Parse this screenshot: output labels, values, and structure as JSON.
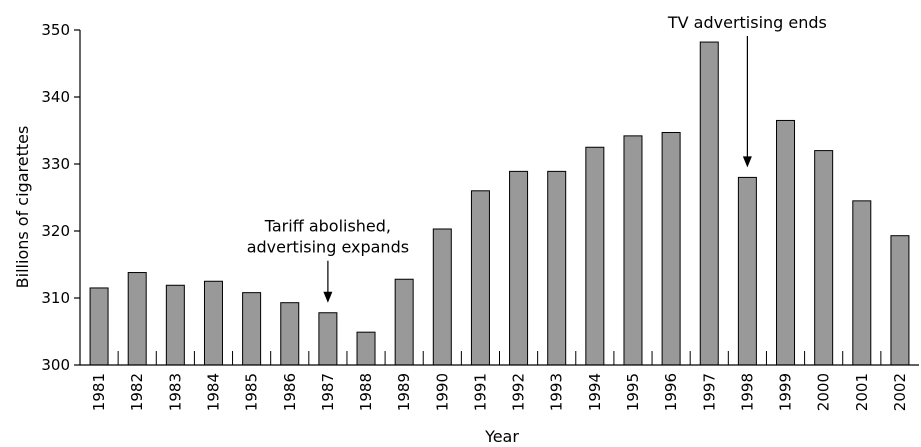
{
  "chart_data": {
    "type": "bar",
    "title": "",
    "xlabel": "Year",
    "ylabel": "Billions of cigarettes",
    "ylim": [
      300,
      350
    ],
    "yticks": [
      300,
      310,
      320,
      330,
      340,
      350
    ],
    "grid": false,
    "categories": [
      "1981",
      "1982",
      "1983",
      "1984",
      "1985",
      "1986",
      "1987",
      "1988",
      "1989",
      "1990",
      "1991",
      "1992",
      "1993",
      "1994",
      "1995",
      "1996",
      "1997",
      "1998",
      "1999",
      "2000",
      "2001",
      "2002"
    ],
    "values": [
      311.5,
      313.8,
      311.9,
      312.5,
      310.8,
      309.3,
      307.8,
      304.9,
      312.8,
      320.3,
      326.0,
      328.9,
      328.9,
      332.5,
      334.2,
      334.7,
      348.2,
      328.0,
      336.5,
      332.0,
      324.5,
      319.3
    ],
    "bar_color": "#999999",
    "annotations": [
      {
        "lines": [
          "Tariff abolished,",
          "advertising expands"
        ],
        "category": "1987"
      },
      {
        "lines": [
          "TV advertising ends"
        ],
        "category": "1998"
      }
    ]
  }
}
